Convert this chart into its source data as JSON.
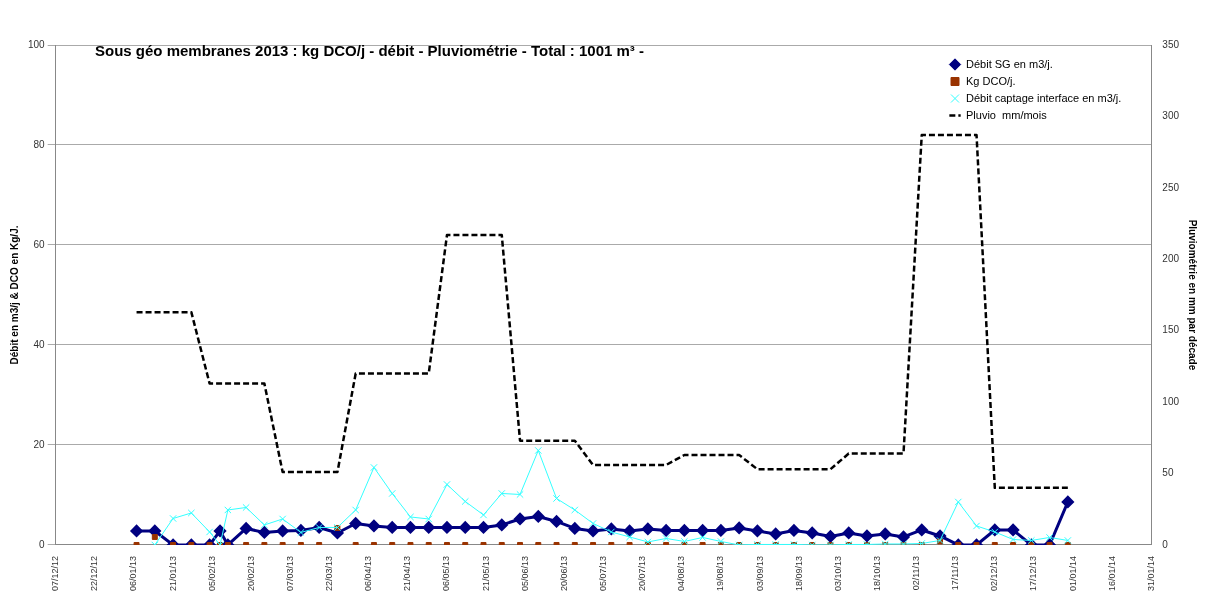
{
  "chart_data": {
    "type": "line",
    "title": "Sous géo membranes 2013 : kg DCO/j - débit - Pluviométrie -  Total : 1001 m³ -",
    "ylabel": "Débit en m3/j & DCO en Kg/J.",
    "y2label": "Pluviométrie en mm par décade",
    "x": [
      "2013-01-07",
      "2013-01-14",
      "2013-01-21",
      "2013-01-28",
      "2013-02-04",
      "2013-02-08",
      "2013-02-11",
      "2013-02-18",
      "2013-02-25",
      "2013-03-04",
      "2013-03-11",
      "2013-03-18",
      "2013-03-25",
      "2013-04-01",
      "2013-04-08",
      "2013-04-15",
      "2013-04-22",
      "2013-04-29",
      "2013-05-06",
      "2013-05-13",
      "2013-05-20",
      "2013-05-27",
      "2013-06-03",
      "2013-06-10",
      "2013-06-17",
      "2013-06-24",
      "2013-07-01",
      "2013-07-08",
      "2013-07-15",
      "2013-07-22",
      "2013-07-29",
      "2013-08-05",
      "2013-08-12",
      "2013-08-19",
      "2013-08-26",
      "2013-09-02",
      "2013-09-09",
      "2013-09-16",
      "2013-09-23",
      "2013-09-30",
      "2013-10-07",
      "2013-10-14",
      "2013-10-21",
      "2013-10-28",
      "2013-11-04",
      "2013-11-11",
      "2013-11-18",
      "2013-11-25",
      "2013-12-02",
      "2013-12-09",
      "2013-12-16",
      "2013-12-23",
      "2013-12-30"
    ],
    "series": [
      {
        "name": "Débit SG en m3/j.",
        "type": "line",
        "marker": "diamond",
        "color": "#000080",
        "values": [
          2.8,
          2.8,
          0,
          0,
          0,
          2.8,
          0,
          3.3,
          2.5,
          2.8,
          2.9,
          3.5,
          2.4,
          4.3,
          3.8,
          3.5,
          3.5,
          3.5,
          3.5,
          3.5,
          3.5,
          4.0,
          5.2,
          5.7,
          4.7,
          3.3,
          2.8,
          3.2,
          2.8,
          3.2,
          2.9,
          2.9,
          2.9,
          2.9,
          3.4,
          2.8,
          2.2,
          2.9,
          2.4,
          1.7,
          2.4,
          1.8,
          2.2,
          1.6,
          3.0,
          1.8,
          0,
          0,
          3.0,
          3.0,
          0,
          0,
          8.6
        ]
      },
      {
        "name": "Kg DCO/j.",
        "type": "scatter",
        "marker": "square",
        "color": "#993300",
        "values": [
          0,
          1.6,
          0,
          0,
          0,
          0,
          0,
          0,
          0,
          0,
          0,
          0,
          3.4,
          0,
          0,
          0,
          0,
          0,
          0,
          0,
          0,
          0,
          0,
          0,
          0,
          0,
          0,
          0,
          0,
          0,
          0,
          0,
          0,
          0,
          0,
          0,
          0,
          0,
          0,
          0,
          0,
          0,
          0,
          0,
          0,
          0.7,
          0,
          0,
          0,
          0,
          0,
          0,
          0
        ]
      },
      {
        "name": "Débit captage interface en m3/j.",
        "type": "line",
        "marker": "cross",
        "color": "#33ffff",
        "values": [
          null,
          0,
          5.3,
          6.4,
          2.6,
          0,
          7.0,
          7.5,
          4.0,
          5.2,
          2.5,
          3.5,
          3.5,
          7.0,
          15.5,
          10.3,
          5.6,
          5.2,
          12.1,
          8.7,
          6.0,
          10.3,
          10.1,
          18.9,
          9.3,
          7.0,
          4.3,
          2.6,
          1.6,
          0.6,
          1.3,
          0.7,
          1.5,
          0.7,
          0,
          0.1,
          0.1,
          0.1,
          0,
          0,
          0.1,
          0.1,
          0.2,
          0.2,
          0.3,
          0.9,
          8.6,
          3.8,
          2.6,
          1.1,
          0.9,
          1.5,
          0.9
        ]
      },
      {
        "name": "Pluvio  mm/mois",
        "type": "line",
        "marker": "none",
        "line_style": "dashed",
        "axis": "y2",
        "color": "#000000",
        "values": [
          163,
          163,
          163,
          163,
          113,
          113,
          113,
          113,
          113,
          51,
          51,
          51,
          51,
          120,
          120,
          120,
          120,
          120,
          217,
          217,
          217,
          217,
          73,
          73,
          73,
          73,
          56,
          56,
          56,
          56,
          56,
          63,
          63,
          63,
          63,
          53,
          53,
          53,
          53,
          53,
          64,
          64,
          64,
          64,
          287,
          287,
          287,
          287,
          40,
          40,
          40,
          40,
          40
        ]
      }
    ],
    "xlim": [
      "2012-12-07",
      "2014-01-31"
    ],
    "xticks": [
      {
        "value": "2012-12-07",
        "label": "07/12/12"
      },
      {
        "value": "2012-12-22",
        "label": "22/12/12"
      },
      {
        "value": "2013-01-06",
        "label": "06/01/13"
      },
      {
        "value": "2013-01-21",
        "label": "21/01/13"
      },
      {
        "value": "2013-02-05",
        "label": "05/02/13"
      },
      {
        "value": "2013-02-20",
        "label": "20/02/13"
      },
      {
        "value": "2013-03-07",
        "label": "07/03/13"
      },
      {
        "value": "2013-03-22",
        "label": "22/03/13"
      },
      {
        "value": "2013-04-06",
        "label": "06/04/13"
      },
      {
        "value": "2013-04-21",
        "label": "21/04/13"
      },
      {
        "value": "2013-05-06",
        "label": "06/05/13"
      },
      {
        "value": "2013-05-21",
        "label": "21/05/13"
      },
      {
        "value": "2013-06-05",
        "label": "05/06/13"
      },
      {
        "value": "2013-06-20",
        "label": "20/06/13"
      },
      {
        "value": "2013-07-05",
        "label": "05/07/13"
      },
      {
        "value": "2013-07-20",
        "label": "20/07/13"
      },
      {
        "value": "2013-08-04",
        "label": "04/08/13"
      },
      {
        "value": "2013-08-19",
        "label": "19/08/13"
      },
      {
        "value": "2013-09-03",
        "label": "03/09/13"
      },
      {
        "value": "2013-09-18",
        "label": "18/09/13"
      },
      {
        "value": "2013-10-03",
        "label": "03/10/13"
      },
      {
        "value": "2013-10-18",
        "label": "18/10/13"
      },
      {
        "value": "2013-11-02",
        "label": "02/11/13"
      },
      {
        "value": "2013-11-17",
        "label": "17/11/13"
      },
      {
        "value": "2013-12-02",
        "label": "02/12/13"
      },
      {
        "value": "2013-12-17",
        "label": "17/12/13"
      },
      {
        "value": "2014-01-01",
        "label": "01/01/14"
      },
      {
        "value": "2014-01-16",
        "label": "16/01/14"
      },
      {
        "value": "2014-01-31",
        "label": "31/01/14"
      }
    ],
    "ylim": [
      0,
      100
    ],
    "yticks": [
      0,
      20,
      40,
      60,
      80,
      100
    ],
    "y2lim": [
      0,
      350
    ],
    "y2ticks": [
      0,
      50,
      100,
      150,
      200,
      250,
      300,
      350
    ],
    "grid": "y",
    "legend": "top right"
  }
}
